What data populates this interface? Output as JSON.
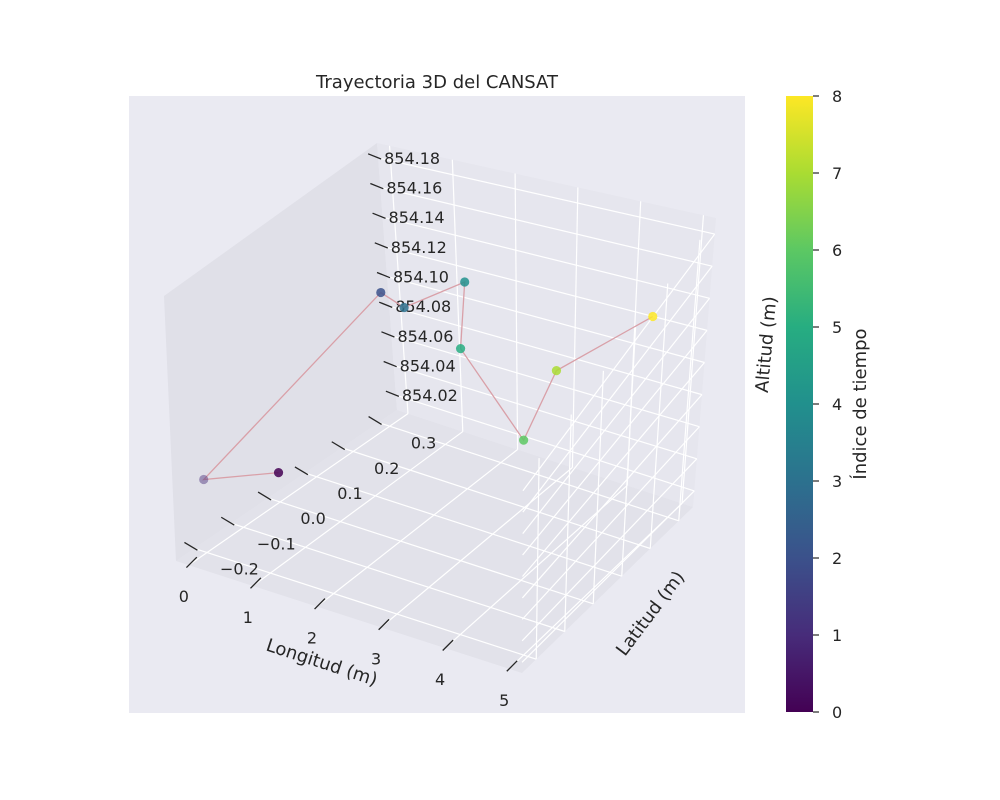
{
  "chart_data": {
    "type": "scatter",
    "projection": "3d",
    "title": "Trayectoria 3D del CANSAT",
    "xlabel": "Longitud (m)",
    "ylabel": "Latitud (m)",
    "zlabel": "Altitud (m)",
    "colorbar_label": "Índice de tiempo",
    "colormap": "viridis",
    "grid": true,
    "line_color": "#d9a0a8",
    "x_ticks": [
      "0",
      "1",
      "2",
      "3",
      "4",
      "5"
    ],
    "y_ticks": [
      "−0.2",
      "−0.1",
      "0.0",
      "0.1",
      "0.2",
      "0.3"
    ],
    "z_ticks": [
      "854.02",
      "854.04",
      "854.06",
      "854.08",
      "854.10",
      "854.12",
      "854.14",
      "854.16",
      "854.18"
    ],
    "colorbar_ticks": [
      "0",
      "1",
      "2",
      "3",
      "4",
      "5",
      "6",
      "7",
      "8"
    ],
    "xlim": [
      -0.2,
      5.2
    ],
    "ylim": [
      -0.25,
      0.35
    ],
    "zlim": [
      854.01,
      854.19
    ],
    "clim": [
      0,
      8
    ],
    "points": [
      {
        "t": 0,
        "x": 0.0,
        "y": 0.0,
        "z": 854.03
      },
      {
        "t": 1,
        "x": 0.0,
        "y": -0.2,
        "z": 854.06
      },
      {
        "t": 2,
        "x": 0.0,
        "y": 0.3,
        "z": 854.1
      },
      {
        "t": 3,
        "x": 1.0,
        "y": 0.2,
        "z": 854.12
      },
      {
        "t": 4,
        "x": 2.0,
        "y": 0.2,
        "z": 854.15
      },
      {
        "t": 5,
        "x": 3.0,
        "y": 0.0,
        "z": 854.165
      },
      {
        "t": 6,
        "x": 4.0,
        "y": 0.0,
        "z": 854.115
      },
      {
        "t": 7,
        "x": 4.0,
        "y": 0.1,
        "z": 854.14
      },
      {
        "t": 8,
        "x": 5.0,
        "y": 0.2,
        "z": 854.165
      }
    ]
  }
}
